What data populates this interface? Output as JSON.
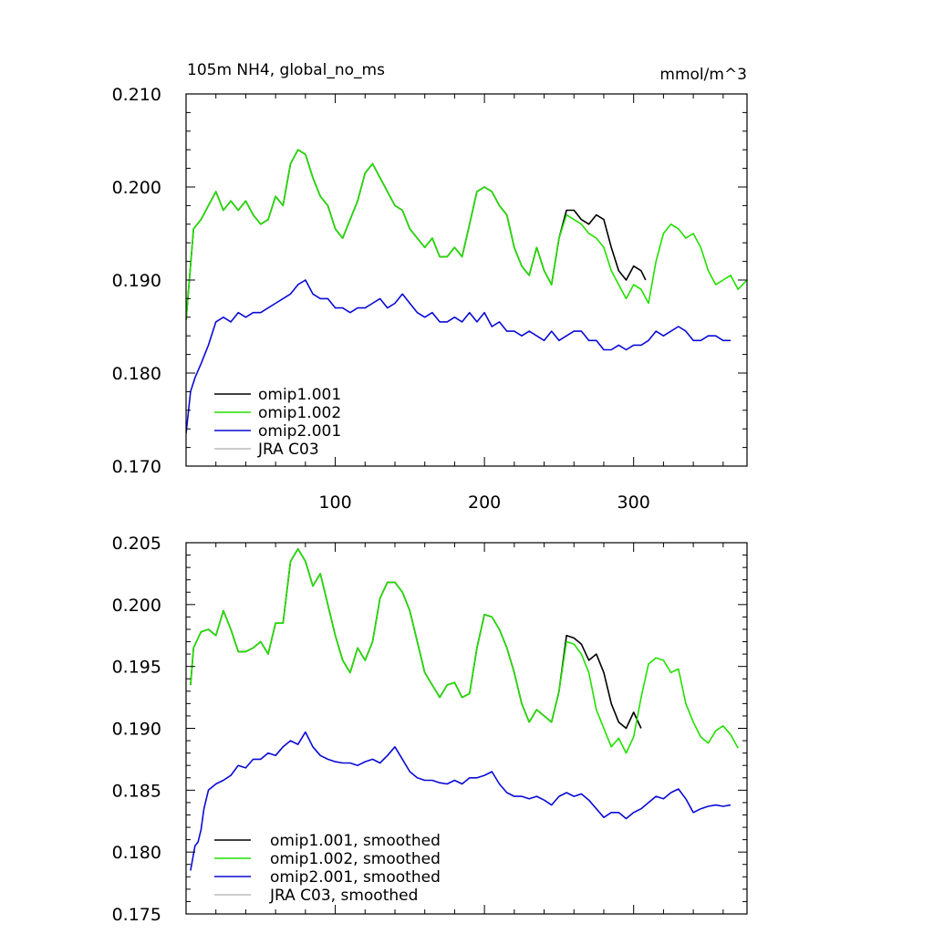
{
  "figure": {
    "title_left": "105m NH4, global_no_ms",
    "title_right": "mmol/m^3"
  },
  "colors": {
    "omip1_001": "#000000",
    "omip1_002": "#22e000",
    "omip2_001": "#0a0ad6",
    "jra_c03": "#bbbbbb"
  },
  "chart_data": [
    {
      "id": "top",
      "type": "line",
      "title": "105m NH4, global_no_ms",
      "units": "mmol/m^3",
      "xlim": [
        0,
        376
      ],
      "ylim": [
        0.17,
        0.21
      ],
      "xticks": [
        100,
        200,
        300
      ],
      "xtick_labels": [
        "100",
        "200",
        "300"
      ],
      "yticks": [
        0.17,
        0.18,
        0.19,
        0.2,
        0.21
      ],
      "ytick_labels": [
        "0.170",
        "0.180",
        "0.190",
        "0.200",
        "0.210"
      ],
      "legend": [
        "omip1.001",
        "omip1.002",
        "omip2.001",
        "JRA C03"
      ],
      "legend_position": "bottom-left",
      "series": [
        {
          "name": "omip1.001",
          "color": "#000000",
          "x": [
            0,
            5,
            10,
            15,
            20,
            25,
            30,
            35,
            40,
            45,
            50,
            55,
            60,
            65,
            70,
            75,
            80,
            85,
            90,
            95,
            100,
            105,
            110,
            115,
            120,
            125,
            130,
            135,
            140,
            145,
            150,
            155,
            160,
            165,
            170,
            175,
            180,
            185,
            190,
            195,
            200,
            205,
            210,
            215,
            220,
            225,
            230,
            235,
            240,
            245,
            250,
            255,
            260,
            265,
            270,
            275,
            280,
            285,
            290,
            295,
            300,
            305,
            308
          ],
          "y": [
            0.1857,
            0.1955,
            0.1965,
            0.198,
            0.1995,
            0.1975,
            0.1985,
            0.1975,
            0.1985,
            0.197,
            0.196,
            0.1965,
            0.199,
            0.198,
            0.2025,
            0.204,
            0.2035,
            0.201,
            0.199,
            0.198,
            0.1955,
            0.1945,
            0.1965,
            0.1985,
            0.2015,
            0.2025,
            0.201,
            0.1995,
            0.198,
            0.1975,
            0.1955,
            0.1945,
            0.1935,
            0.1945,
            0.1925,
            0.1925,
            0.1935,
            0.1925,
            0.196,
            0.1995,
            0.2,
            0.1995,
            0.198,
            0.197,
            0.1935,
            0.1915,
            0.1905,
            0.1935,
            0.191,
            0.1895,
            0.1945,
            0.1975,
            0.1975,
            0.1965,
            0.196,
            0.197,
            0.1965,
            0.1935,
            0.191,
            0.19,
            0.1915,
            0.191,
            0.19
          ]
        },
        {
          "name": "omip1.002",
          "color": "#22e000",
          "x": [
            0,
            5,
            10,
            15,
            20,
            25,
            30,
            35,
            40,
            45,
            50,
            55,
            60,
            65,
            70,
            75,
            80,
            85,
            90,
            95,
            100,
            105,
            110,
            115,
            120,
            125,
            130,
            135,
            140,
            145,
            150,
            155,
            160,
            165,
            170,
            175,
            180,
            185,
            190,
            195,
            200,
            205,
            210,
            215,
            220,
            225,
            230,
            235,
            240,
            245,
            250,
            255,
            260,
            265,
            270,
            275,
            280,
            285,
            290,
            295,
            300,
            305,
            310,
            315,
            320,
            325,
            330,
            335,
            340,
            345,
            350,
            355,
            360,
            365,
            370,
            376
          ],
          "y": [
            0.1857,
            0.1955,
            0.1965,
            0.198,
            0.1995,
            0.1975,
            0.1985,
            0.1975,
            0.1985,
            0.197,
            0.196,
            0.1965,
            0.199,
            0.198,
            0.2025,
            0.204,
            0.2035,
            0.201,
            0.199,
            0.198,
            0.1955,
            0.1945,
            0.1965,
            0.1985,
            0.2015,
            0.2025,
            0.201,
            0.1995,
            0.198,
            0.1975,
            0.1955,
            0.1945,
            0.1935,
            0.1945,
            0.1925,
            0.1925,
            0.1935,
            0.1925,
            0.196,
            0.1995,
            0.2,
            0.1995,
            0.198,
            0.197,
            0.1935,
            0.1915,
            0.1905,
            0.1935,
            0.191,
            0.1895,
            0.1945,
            0.197,
            0.1965,
            0.196,
            0.195,
            0.1945,
            0.1935,
            0.191,
            0.1895,
            0.188,
            0.1895,
            0.189,
            0.1875,
            0.192,
            0.195,
            0.196,
            0.1955,
            0.1945,
            0.195,
            0.1935,
            0.191,
            0.1895,
            0.19,
            0.1905,
            0.189,
            0.19
          ]
        },
        {
          "name": "omip2.001",
          "color": "#0a0ad6",
          "x": [
            0,
            3,
            6,
            10,
            15,
            20,
            25,
            30,
            35,
            40,
            45,
            50,
            55,
            60,
            65,
            70,
            75,
            80,
            85,
            90,
            95,
            100,
            105,
            110,
            115,
            120,
            125,
            130,
            135,
            140,
            145,
            150,
            155,
            160,
            165,
            170,
            175,
            180,
            185,
            190,
            195,
            200,
            205,
            210,
            215,
            220,
            225,
            230,
            235,
            240,
            245,
            250,
            255,
            260,
            265,
            270,
            275,
            280,
            285,
            290,
            295,
            300,
            305,
            310,
            315,
            320,
            325,
            330,
            335,
            340,
            345,
            350,
            355,
            360,
            365
          ],
          "y": [
            0.1735,
            0.178,
            0.1795,
            0.181,
            0.183,
            0.1855,
            0.186,
            0.1855,
            0.1865,
            0.186,
            0.1865,
            0.1865,
            0.187,
            0.1875,
            0.188,
            0.1885,
            0.1895,
            0.19,
            0.1885,
            0.188,
            0.188,
            0.187,
            0.187,
            0.1865,
            0.187,
            0.187,
            0.1875,
            0.188,
            0.187,
            0.1875,
            0.1885,
            0.1875,
            0.1865,
            0.186,
            0.1865,
            0.1855,
            0.1855,
            0.186,
            0.1855,
            0.1865,
            0.1855,
            0.1865,
            0.185,
            0.1855,
            0.1845,
            0.1845,
            0.184,
            0.1845,
            0.184,
            0.1835,
            0.1845,
            0.1835,
            0.184,
            0.1845,
            0.1845,
            0.1835,
            0.1835,
            0.1825,
            0.1825,
            0.183,
            0.1825,
            0.183,
            0.183,
            0.1835,
            0.1845,
            0.184,
            0.1845,
            0.185,
            0.1845,
            0.1835,
            0.1835,
            0.184,
            0.184,
            0.1835,
            0.1835
          ]
        },
        {
          "name": "JRA C03",
          "color": "#bbbbbb",
          "x": [],
          "y": []
        }
      ]
    },
    {
      "id": "bottom",
      "type": "line",
      "title": "",
      "xlim": [
        0,
        376
      ],
      "ylim": [
        0.175,
        0.205
      ],
      "xticks": [
        100,
        200,
        300
      ],
      "xtick_labels": [],
      "yticks": [
        0.175,
        0.18,
        0.185,
        0.19,
        0.195,
        0.2,
        0.205
      ],
      "ytick_labels": [
        "0.175",
        "0.180",
        "0.185",
        "0.190",
        "0.195",
        "0.200",
        "0.205"
      ],
      "legend": [
        "omip1.001, smoothed",
        "omip1.002, smoothed",
        "omip2.001, smoothed",
        "JRA C03, smoothed"
      ],
      "legend_position": "bottom-left",
      "series": [
        {
          "name": "omip1.001, smoothed",
          "color": "#000000",
          "x": [
            3,
            5,
            10,
            15,
            20,
            25,
            30,
            35,
            40,
            45,
            50,
            55,
            60,
            65,
            70,
            75,
            80,
            85,
            90,
            95,
            100,
            105,
            110,
            115,
            120,
            125,
            130,
            135,
            140,
            145,
            150,
            155,
            160,
            165,
            170,
            175,
            180,
            185,
            190,
            195,
            200,
            205,
            210,
            215,
            220,
            225,
            230,
            235,
            240,
            245,
            250,
            255,
            260,
            265,
            270,
            275,
            280,
            285,
            290,
            295,
            300,
            305
          ],
          "y": [
            0.1935,
            0.1965,
            0.1978,
            0.198,
            0.1975,
            0.1995,
            0.198,
            0.1962,
            0.1962,
            0.1965,
            0.197,
            0.196,
            0.1985,
            0.1985,
            0.2035,
            0.2045,
            0.2035,
            0.2015,
            0.2025,
            0.2,
            0.1975,
            0.1955,
            0.1945,
            0.1965,
            0.1955,
            0.197,
            0.2005,
            0.2018,
            0.2018,
            0.201,
            0.1995,
            0.197,
            0.1945,
            0.1935,
            0.1925,
            0.1935,
            0.1937,
            0.1925,
            0.1928,
            0.1965,
            0.1992,
            0.199,
            0.198,
            0.1965,
            0.1945,
            0.192,
            0.1905,
            0.1915,
            0.191,
            0.1905,
            0.193,
            0.1975,
            0.1973,
            0.1968,
            0.1955,
            0.196,
            0.1945,
            0.192,
            0.1905,
            0.19,
            0.1913,
            0.19
          ]
        },
        {
          "name": "omip1.002, smoothed",
          "color": "#22e000",
          "x": [
            3,
            5,
            10,
            15,
            20,
            25,
            30,
            35,
            40,
            45,
            50,
            55,
            60,
            65,
            70,
            75,
            80,
            85,
            90,
            95,
            100,
            105,
            110,
            115,
            120,
            125,
            130,
            135,
            140,
            145,
            150,
            155,
            160,
            165,
            170,
            175,
            180,
            185,
            190,
            195,
            200,
            205,
            210,
            215,
            220,
            225,
            230,
            235,
            240,
            245,
            250,
            255,
            260,
            265,
            270,
            275,
            280,
            285,
            290,
            295,
            300,
            305,
            310,
            315,
            320,
            325,
            330,
            335,
            340,
            345,
            350,
            355,
            360,
            365,
            370
          ],
          "y": [
            0.1935,
            0.1965,
            0.1978,
            0.198,
            0.1975,
            0.1995,
            0.198,
            0.1962,
            0.1962,
            0.1965,
            0.197,
            0.196,
            0.1985,
            0.1985,
            0.2035,
            0.2045,
            0.2035,
            0.2015,
            0.2025,
            0.2,
            0.1975,
            0.1955,
            0.1945,
            0.1965,
            0.1955,
            0.197,
            0.2005,
            0.2018,
            0.2018,
            0.201,
            0.1995,
            0.197,
            0.1945,
            0.1935,
            0.1925,
            0.1935,
            0.1937,
            0.1925,
            0.1928,
            0.1965,
            0.1992,
            0.199,
            0.198,
            0.1965,
            0.1945,
            0.192,
            0.1905,
            0.1915,
            0.191,
            0.1905,
            0.193,
            0.197,
            0.1968,
            0.196,
            0.1945,
            0.1915,
            0.19,
            0.1885,
            0.1892,
            0.188,
            0.1893,
            0.1925,
            0.1952,
            0.1957,
            0.1955,
            0.1945,
            0.1948,
            0.192,
            0.1905,
            0.1893,
            0.1888,
            0.1898,
            0.1902,
            0.1895,
            0.1884
          ]
        },
        {
          "name": "omip2.001, smoothed",
          "color": "#0a0ad6",
          "x": [
            3,
            6,
            8,
            10,
            12,
            15,
            20,
            25,
            30,
            35,
            40,
            45,
            50,
            55,
            60,
            65,
            70,
            75,
            80,
            85,
            90,
            95,
            100,
            105,
            110,
            115,
            120,
            125,
            130,
            135,
            140,
            145,
            150,
            155,
            160,
            165,
            170,
            175,
            180,
            185,
            190,
            195,
            200,
            205,
            210,
            215,
            220,
            225,
            230,
            235,
            240,
            245,
            250,
            255,
            260,
            265,
            270,
            275,
            280,
            285,
            290,
            295,
            300,
            305,
            310,
            315,
            320,
            325,
            330,
            335,
            340,
            345,
            350,
            355,
            360,
            365
          ],
          "y": [
            0.1785,
            0.1805,
            0.1808,
            0.1818,
            0.1835,
            0.185,
            0.1855,
            0.1858,
            0.1862,
            0.187,
            0.1868,
            0.1875,
            0.1875,
            0.188,
            0.1878,
            0.1885,
            0.189,
            0.1887,
            0.1897,
            0.1885,
            0.1878,
            0.1875,
            0.1873,
            0.1872,
            0.1872,
            0.187,
            0.1873,
            0.1875,
            0.1872,
            0.1878,
            0.1885,
            0.1875,
            0.1865,
            0.186,
            0.1858,
            0.1858,
            0.1856,
            0.1855,
            0.1858,
            0.1855,
            0.186,
            0.186,
            0.1862,
            0.1865,
            0.1855,
            0.1848,
            0.1845,
            0.1845,
            0.1843,
            0.1845,
            0.1842,
            0.1838,
            0.1845,
            0.1848,
            0.1845,
            0.1847,
            0.1842,
            0.1835,
            0.1828,
            0.1832,
            0.1832,
            0.1827,
            0.1832,
            0.1835,
            0.184,
            0.1845,
            0.1843,
            0.1848,
            0.1851,
            0.1843,
            0.1832,
            0.1835,
            0.1837,
            0.1838,
            0.1837,
            0.1838
          ]
        },
        {
          "name": "JRA C03, smoothed",
          "color": "#bbbbbb",
          "x": [],
          "y": []
        }
      ]
    }
  ]
}
